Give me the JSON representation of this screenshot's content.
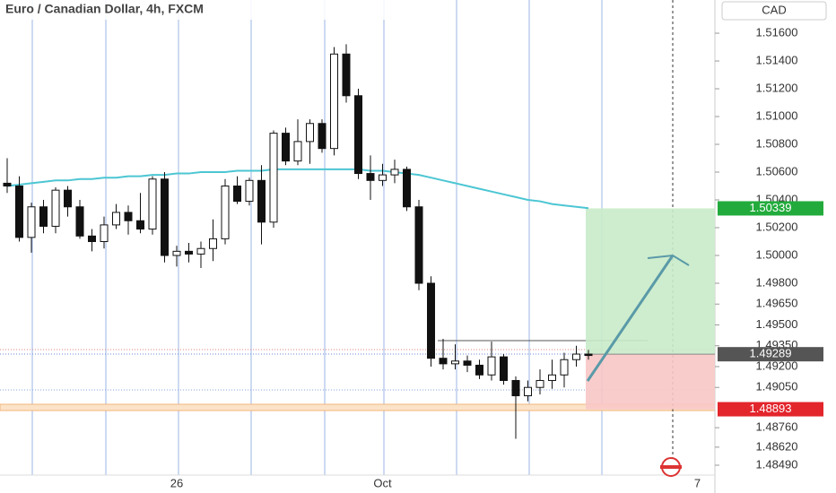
{
  "chart_data": {
    "type": "candlestick",
    "title": "Euro / Canadian Dollar, 4h, FXCM",
    "currency": "CAD",
    "categories": [
      null,
      null,
      null,
      null,
      null,
      null,
      null,
      null,
      null,
      null,
      null,
      null,
      null,
      null,
      "26",
      null,
      null,
      null,
      null,
      null,
      null,
      null,
      null,
      null,
      null,
      null,
      null,
      null,
      null,
      null,
      null,
      "Oct",
      null,
      null,
      null,
      null,
      null,
      null,
      null,
      null,
      null,
      null,
      null,
      null,
      null,
      null,
      null,
      null,
      null,
      null,
      null,
      null,
      null,
      null,
      null,
      null,
      null,
      "7",
      null
    ],
    "open": [
      1.5052,
      1.505,
      1.5013,
      1.5035,
      1.5021,
      1.5047,
      1.5035,
      1.5014,
      1.501,
      1.5022,
      1.5031,
      1.5025,
      1.5019,
      1.5055,
      1.5,
      1.5003,
      1.5001,
      1.5005,
      1.5012,
      1.505,
      1.5039,
      1.5054,
      1.5024,
      1.5088,
      1.5068,
      1.5082,
      1.5095,
      1.5077,
      1.5145,
      1.5115,
      1.5059,
      1.5054,
      1.5058,
      1.5062,
      1.5035,
      1.498,
      1.4926,
      1.4922,
      1.4924,
      1.4921,
      1.4914,
      1.4927,
      1.491,
      1.4899,
      1.4905,
      1.491,
      1.4914,
      1.4925,
      1.4929,
      null,
      null,
      null,
      null,
      null,
      null,
      null,
      null,
      null,
      null
    ],
    "high": [
      1.507,
      1.5057,
      1.5038,
      1.504,
      1.5049,
      1.505,
      1.504,
      1.5019,
      1.5028,
      1.5037,
      1.5036,
      1.5045,
      1.5057,
      1.506,
      1.5007,
      1.5009,
      1.501,
      1.5026,
      1.5055,
      1.5057,
      1.5056,
      1.5065,
      1.509,
      1.5092,
      1.5098,
      1.5098,
      1.5098,
      1.515,
      1.5152,
      1.512,
      1.5072,
      1.5066,
      1.5069,
      1.5064,
      1.504,
      1.4985,
      1.494,
      1.4936,
      1.4928,
      1.4925,
      1.4938,
      1.4929,
      1.4913,
      1.491,
      1.4918,
      1.4925,
      1.493,
      1.4935,
      1.4932,
      null,
      null,
      null,
      null,
      null,
      null,
      null,
      null,
      null,
      null
    ],
    "low": [
      1.5045,
      1.501,
      1.5002,
      1.5016,
      1.5016,
      1.5028,
      1.5012,
      1.5003,
      1.5005,
      1.5019,
      1.5015,
      1.5016,
      1.5015,
      1.4995,
      1.4992,
      1.4995,
      1.4991,
      1.4996,
      1.5008,
      1.5037,
      1.5036,
      1.5008,
      1.502,
      1.5065,
      1.5065,
      1.5066,
      1.5074,
      1.5072,
      1.511,
      1.5055,
      1.504,
      1.505,
      1.5052,
      1.5032,
      1.4975,
      1.492,
      1.4918,
      1.4918,
      1.4916,
      1.4911,
      1.491,
      1.4907,
      1.4868,
      1.4895,
      1.49,
      1.4904,
      1.4905,
      1.492,
      1.4925,
      null,
      null,
      null,
      null,
      null,
      null,
      null,
      null,
      null,
      null
    ],
    "close": [
      1.505,
      1.5013,
      1.5035,
      1.5021,
      1.5047,
      1.5035,
      1.5014,
      1.501,
      1.5022,
      1.5031,
      1.5025,
      1.5019,
      1.5055,
      1.5,
      1.5003,
      1.5001,
      1.5005,
      1.5012,
      1.505,
      1.5039,
      1.5054,
      1.5024,
      1.5088,
      1.5068,
      1.5082,
      1.5095,
      1.5077,
      1.5145,
      1.5115,
      1.5059,
      1.5054,
      1.5058,
      1.5062,
      1.5035,
      1.498,
      1.4926,
      1.4922,
      1.4924,
      1.4921,
      1.4914,
      1.4927,
      1.491,
      1.4899,
      1.4905,
      1.491,
      1.4914,
      1.4925,
      1.4929,
      1.4928,
      null,
      null,
      null,
      null,
      null,
      null,
      null,
      null,
      null,
      null
    ],
    "moving_average": {
      "color": "#4cc6d3",
      "values": [
        1.505,
        1.5051,
        1.5052,
        1.5053,
        1.5054,
        1.5054,
        1.5055,
        1.5055,
        1.5056,
        1.5056,
        1.5057,
        1.5057,
        1.5058,
        1.5058,
        1.5059,
        1.5059,
        1.506,
        1.506,
        1.506,
        1.5061,
        1.5061,
        1.5061,
        1.5062,
        1.5062,
        1.5062,
        1.5062,
        1.5062,
        1.5062,
        1.5062,
        1.5062,
        1.5061,
        1.5061,
        1.506,
        1.5059,
        1.5058,
        1.5056,
        1.5054,
        1.5052,
        1.505,
        1.5048,
        1.5046,
        1.5044,
        1.5042,
        1.504,
        1.5039,
        1.5037,
        1.5036,
        1.5035,
        1.5034,
        null,
        null,
        null,
        null,
        null,
        null,
        null,
        null,
        null,
        null
      ]
    },
    "position": {
      "target": 1.50339,
      "entry": 1.49289,
      "stop": 1.48893
    },
    "ylim": [
      1.4829,
      1.51839
    ],
    "yticks": [
      {
        "value": 1.516,
        "label": "1.51600"
      },
      {
        "value": 1.514,
        "label": "1.51400"
      },
      {
        "value": 1.512,
        "label": "1.51200"
      },
      {
        "value": 1.51,
        "label": "1.51000"
      },
      {
        "value": 1.508,
        "label": "1.50800"
      },
      {
        "value": 1.506,
        "label": "1.50600"
      },
      {
        "value": 1.504,
        "label": "1.50400"
      },
      {
        "value": 1.502,
        "label": "1.50200"
      },
      {
        "value": 1.5,
        "label": "1.50000"
      },
      {
        "value": 1.498,
        "label": "1.49800"
      },
      {
        "value": 1.4965,
        "label": "1.49650"
      },
      {
        "value": 1.495,
        "label": "1.49500"
      },
      {
        "value": 1.4935,
        "label": "1.49350"
      },
      {
        "value": 1.492,
        "label": "1.49200"
      },
      {
        "value": 1.4905,
        "label": "1.49050"
      },
      {
        "value": 1.4876,
        "label": "1.48760"
      },
      {
        "value": 1.4862,
        "label": "1.48620"
      },
      {
        "value": 1.4849,
        "label": "1.48490"
      }
    ]
  }
}
